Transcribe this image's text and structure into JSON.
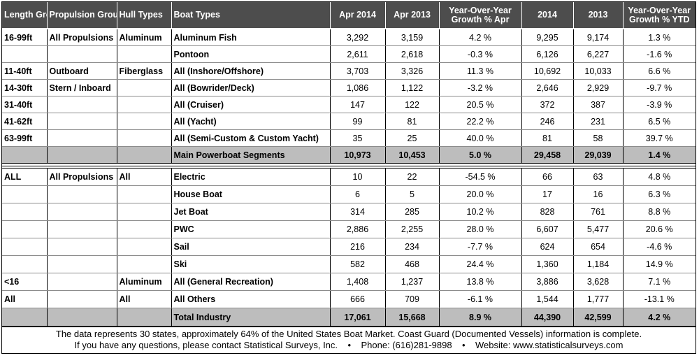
{
  "header": [
    "Length Group",
    "Propulsion Group",
    "Hull Types",
    "Boat Types",
    "Apr 2014",
    "Apr 2013",
    "Year-Over-Year Growth % Apr",
    "2014",
    "2013",
    "Year-Over-Year Growth % YTD"
  ],
  "section1": {
    "rows": [
      [
        "16-99ft",
        "All Propulsions",
        "Aluminum",
        "Aluminum Fish",
        "3,292",
        "3,159",
        "4.2 %",
        "9,295",
        "9,174",
        "1.3 %"
      ],
      [
        "",
        "",
        "",
        "Pontoon",
        "2,611",
        "2,618",
        "-0.3 %",
        "6,126",
        "6,227",
        "-1.6 %"
      ],
      [
        "11-40ft",
        "Outboard",
        "Fiberglass",
        "All (Inshore/Offshore)",
        "3,703",
        "3,326",
        "11.3 %",
        "10,692",
        "10,033",
        "6.6 %"
      ],
      [
        "14-30ft",
        "Stern / Inboard",
        "",
        "All (Bowrider/Deck)",
        "1,086",
        "1,122",
        "-3.2 %",
        "2,646",
        "2,929",
        "-9.7 %"
      ],
      [
        "31-40ft",
        "",
        "",
        "All (Cruiser)",
        "147",
        "122",
        "20.5 %",
        "372",
        "387",
        "-3.9 %"
      ],
      [
        "41-62ft",
        "",
        "",
        "All (Yacht)",
        "99",
        "81",
        "22.2 %",
        "246",
        "231",
        "6.5 %"
      ],
      [
        "63-99ft",
        "",
        "",
        "All (Semi-Custom & Custom Yacht)",
        "35",
        "25",
        "40.0 %",
        "81",
        "58",
        "39.7 %"
      ]
    ],
    "subtotal": [
      "",
      "",
      "",
      "Main Powerboat Segments",
      "10,973",
      "10,453",
      "5.0 %",
      "29,458",
      "29,039",
      "1.4 %"
    ]
  },
  "section2": {
    "rows": [
      [
        "ALL",
        "All Propulsions",
        "All",
        "Electric",
        "10",
        "22",
        "-54.5 %",
        "66",
        "63",
        "4.8 %"
      ],
      [
        "",
        "",
        "",
        "House Boat",
        "6",
        "5",
        "20.0 %",
        "17",
        "16",
        "6.3 %"
      ],
      [
        "",
        "",
        "",
        "Jet Boat",
        "314",
        "285",
        "10.2 %",
        "828",
        "761",
        "8.8 %"
      ],
      [
        "",
        "",
        "",
        "PWC",
        "2,886",
        "2,255",
        "28.0 %",
        "6,607",
        "5,477",
        "20.6 %"
      ],
      [
        "",
        "",
        "",
        "Sail",
        "216",
        "234",
        "-7.7 %",
        "624",
        "654",
        "-4.6 %"
      ],
      [
        "",
        "",
        "",
        "Ski",
        "582",
        "468",
        "24.4 %",
        "1,360",
        "1,184",
        "14.9 %"
      ],
      [
        "<16",
        "",
        "Aluminum",
        "All (General Recreation)",
        "1,408",
        "1,237",
        "13.8 %",
        "3,886",
        "3,628",
        "7.1 %"
      ],
      [
        "All",
        "",
        "All",
        "All Others",
        "666",
        "709",
        "-6.1 %",
        "1,544",
        "1,777",
        "-13.1 %"
      ]
    ],
    "total": [
      "",
      "",
      "",
      "Total Industry",
      "17,061",
      "15,668",
      "8.9 %",
      "44,390",
      "42,599",
      "4.2 %"
    ]
  },
  "footer": {
    "line1": "The data represents 30 states, approximately 64% of the United States Boat Market. Coast Guard (Documented Vessels) information is complete.",
    "line2": "If you have any questions, please contact Statistical Surveys, Inc.    •    Phone: (616)281-9898    •    Website: www.statisticalsurveys.com"
  }
}
